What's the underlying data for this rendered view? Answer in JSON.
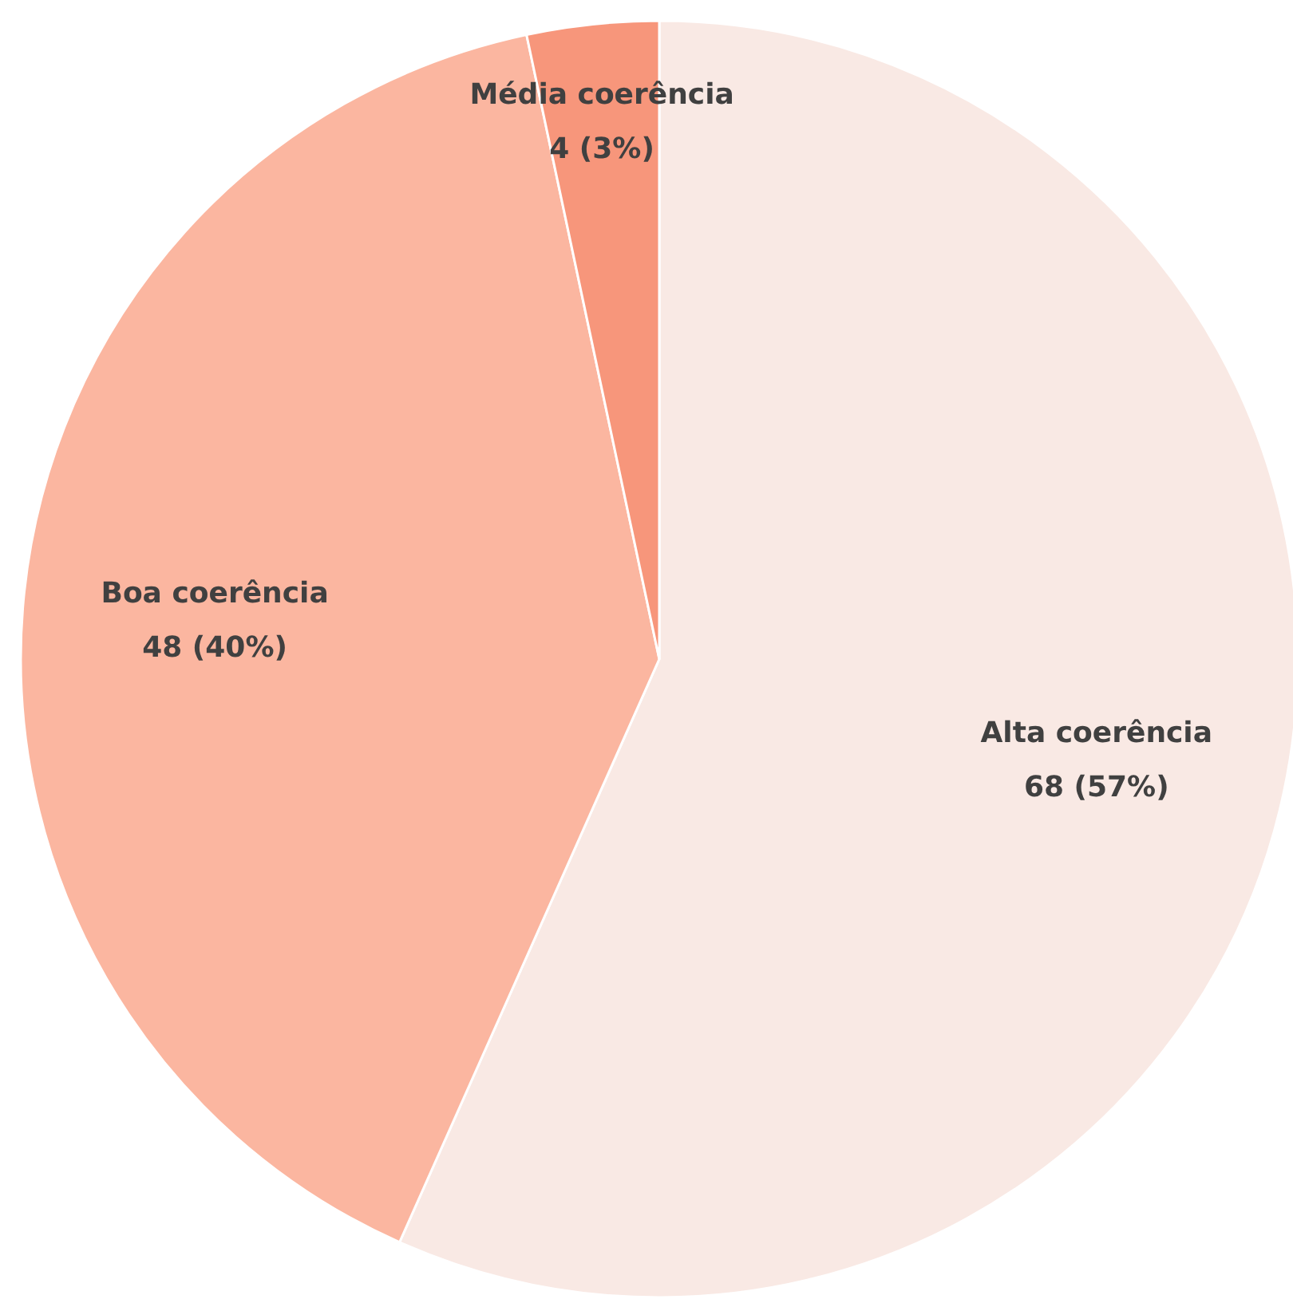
{
  "chart_data": {
    "type": "pie",
    "categories": [
      "Alta coerência",
      "Boa coerência",
      "Média coerência"
    ],
    "values": [
      68,
      48,
      4
    ],
    "colors": [
      "#f9e9e4",
      "#fbb6a0",
      "#f7967b"
    ],
    "value_labels": [
      "68 (57%)",
      "48 (40%)",
      "4 (3%)"
    ]
  }
}
